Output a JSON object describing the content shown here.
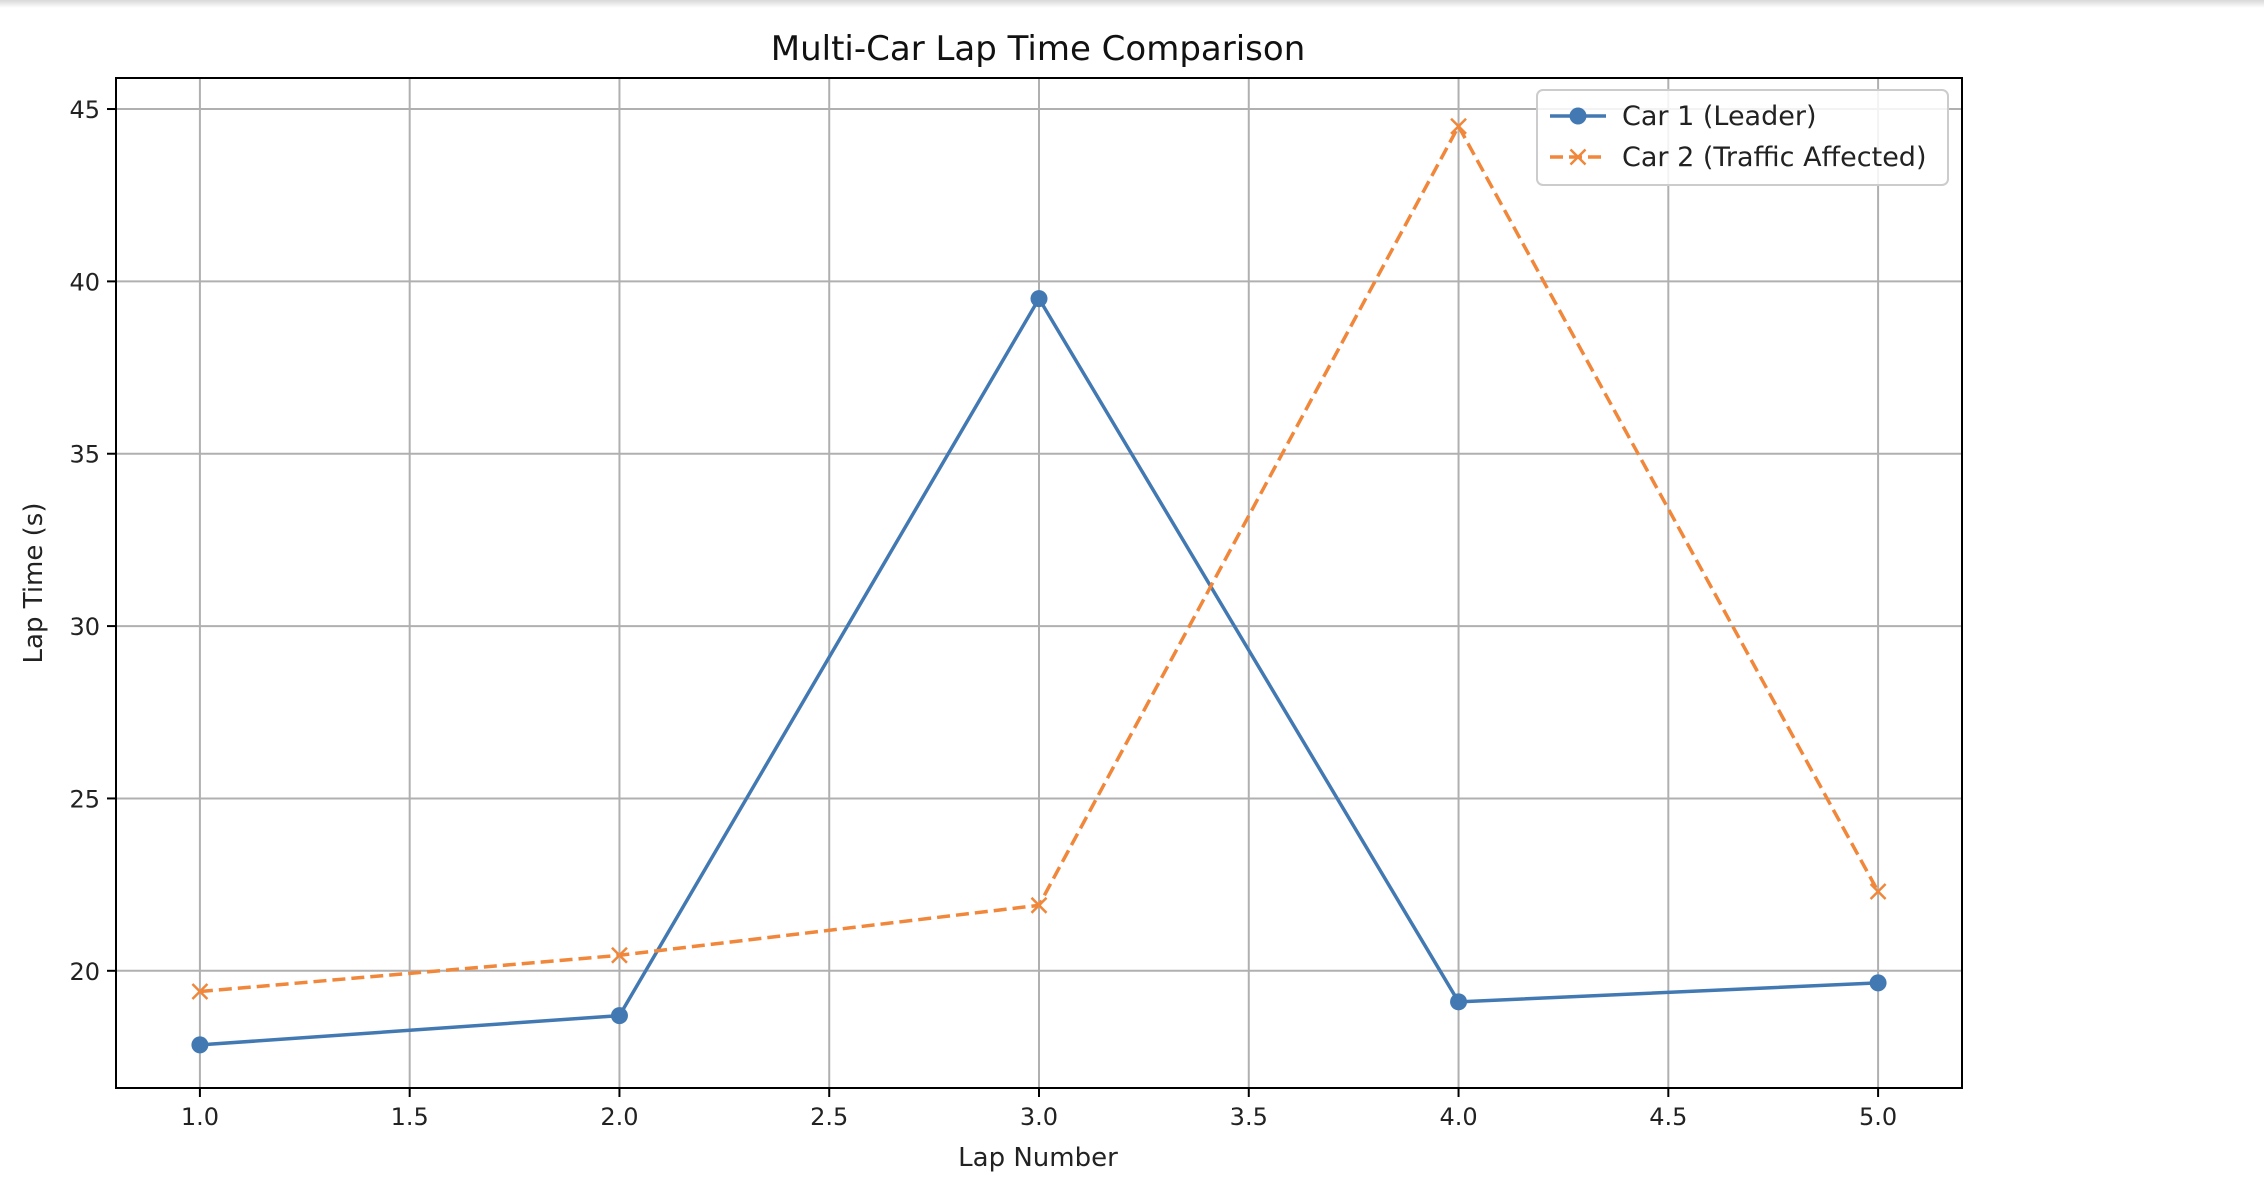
{
  "chart_data": {
    "type": "line",
    "title": "Multi-Car Lap Time Comparison",
    "xlabel": "Lap Number",
    "ylabel": "Lap Time (s)",
    "xlim": [
      0.8,
      5.2
    ],
    "ylim": [
      16.6,
      45.9
    ],
    "xticks": [
      1.0,
      1.5,
      2.0,
      2.5,
      3.0,
      3.5,
      4.0,
      4.5,
      5.0
    ],
    "xtick_labels": [
      "1.0",
      "1.5",
      "2.0",
      "2.5",
      "3.0",
      "3.5",
      "4.0",
      "4.5",
      "5.0"
    ],
    "yticks": [
      20,
      25,
      30,
      35,
      40,
      45
    ],
    "ytick_labels": [
      "20",
      "25",
      "30",
      "35",
      "40",
      "45"
    ],
    "grid": true,
    "legend_position": "top-right",
    "x": [
      1,
      2,
      3,
      4,
      5
    ],
    "series": [
      {
        "name": "Car 1 (Leader)",
        "values": [
          17.85,
          18.7,
          39.5,
          19.1,
          19.65
        ],
        "color": "#4379b2",
        "marker": "circle",
        "linestyle": "solid"
      },
      {
        "name": "Car 2 (Traffic Affected)",
        "values": [
          19.4,
          20.45,
          21.9,
          44.5,
          22.3
        ],
        "color": "#f0873a",
        "marker": "x",
        "linestyle": "dashed"
      }
    ]
  }
}
